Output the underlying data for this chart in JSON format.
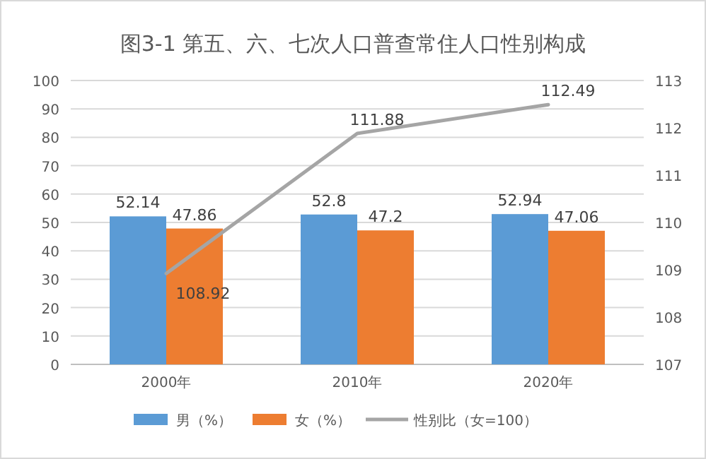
{
  "chart_data": {
    "type": "bar",
    "title": "图3-1 第五、六、七次人口普查常住人口性别构成",
    "categories": [
      "2000年",
      "2010年",
      "2020年"
    ],
    "series": [
      {
        "name": "男（%）",
        "color": "#5b9bd5",
        "values": [
          52.14,
          52.8,
          52.94
        ]
      },
      {
        "name": "女（%）",
        "color": "#ed7d31",
        "values": [
          47.86,
          47.2,
          47.06
        ]
      },
      {
        "name": "性别比（女=100）",
        "type": "line",
        "axis": "y2",
        "color": "#a5a5a5",
        "values": [
          108.92,
          111.88,
          112.49
        ]
      }
    ],
    "ylim": [
      0,
      100
    ],
    "yticks": [
      0,
      10,
      20,
      30,
      40,
      50,
      60,
      70,
      80,
      90,
      100
    ],
    "y2lim": [
      107,
      113
    ],
    "y2ticks": [
      107,
      108,
      109,
      110,
      111,
      112,
      113
    ],
    "grid": "y",
    "legend": "bottom",
    "data_labels": true,
    "marker": "none"
  }
}
